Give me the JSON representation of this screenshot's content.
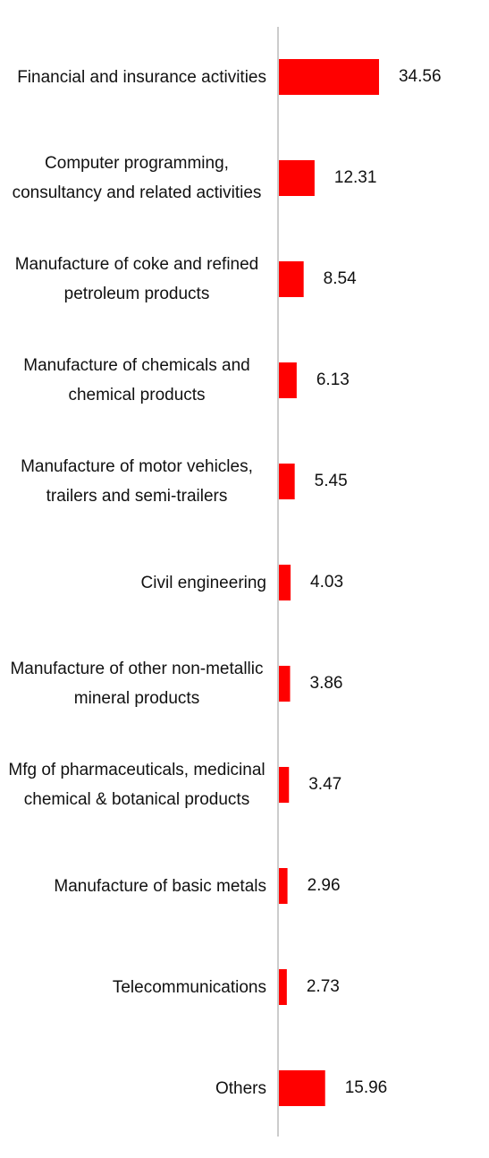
{
  "chart_data": {
    "type": "bar",
    "orientation": "horizontal",
    "color": "#ff0000",
    "categories": [
      "Financial and insurance activities",
      "Computer programming, consultancy and related activities",
      "Manufacture of coke and refined petroleum products",
      "Manufacture of chemicals and chemical products",
      "Manufacture of motor vehicles, trailers and semi-trailers",
      "Civil engineering",
      "Manufacture of other non-metallic mineral products",
      "Mfg of pharmaceuticals, medicinal chemical & botanical products",
      "Manufacture of basic metals",
      "Telecommunications",
      "Others"
    ],
    "values": [
      34.56,
      12.31,
      8.54,
      6.13,
      5.45,
      4.03,
      3.86,
      3.47,
      2.96,
      2.73,
      15.96
    ]
  }
}
